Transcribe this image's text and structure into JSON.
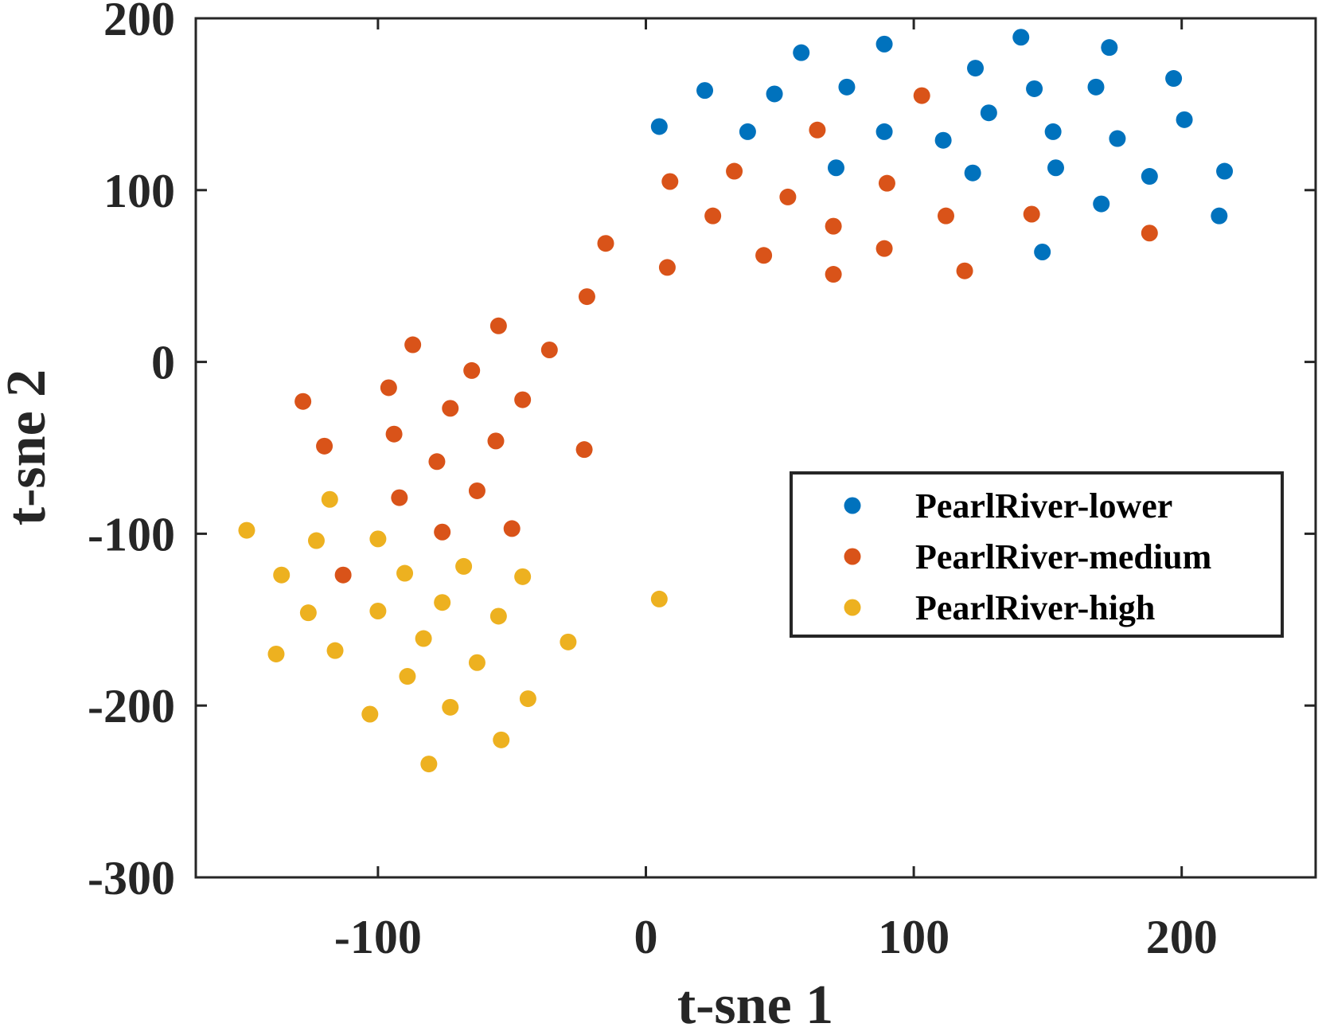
{
  "chart_data": {
    "type": "scatter",
    "title": "",
    "xlabel": "t-sne 1",
    "ylabel": "t-sne 2",
    "xlim": [
      -168,
      250
    ],
    "ylim": [
      -300,
      200
    ],
    "xticks": [
      -100,
      0,
      100,
      200
    ],
    "yticks": [
      -300,
      -200,
      -100,
      0,
      100,
      200
    ],
    "xtick_labels": [
      "-100",
      "0",
      "100",
      "200"
    ],
    "ytick_labels": [
      "-300",
      "-200",
      "-100",
      "0",
      "100",
      "200"
    ],
    "grid": false,
    "legend_position": "center-right",
    "series": [
      {
        "name": "PearlRiver-lower",
        "color": "#0072BD",
        "points": [
          [
            5,
            137
          ],
          [
            22,
            158
          ],
          [
            38,
            134
          ],
          [
            48,
            156
          ],
          [
            58,
            180
          ],
          [
            71,
            113
          ],
          [
            75,
            160
          ],
          [
            89,
            134
          ],
          [
            89,
            185
          ],
          [
            111,
            129
          ],
          [
            122,
            110
          ],
          [
            123,
            171
          ],
          [
            128,
            145
          ],
          [
            140,
            189
          ],
          [
            145,
            159
          ],
          [
            148,
            64
          ],
          [
            152,
            134
          ],
          [
            153,
            113
          ],
          [
            168,
            160
          ],
          [
            170,
            92
          ],
          [
            173,
            183
          ],
          [
            176,
            130
          ],
          [
            188,
            108
          ],
          [
            197,
            165
          ],
          [
            201,
            141
          ],
          [
            214,
            85
          ],
          [
            216,
            111
          ]
        ]
      },
      {
        "name": "PearlRiver-medium",
        "color": "#D95319",
        "points": [
          [
            -128,
            -23
          ],
          [
            -120,
            -49
          ],
          [
            -113,
            -124
          ],
          [
            -96,
            -15
          ],
          [
            -94,
            -42
          ],
          [
            -92,
            -79
          ],
          [
            -87,
            10
          ],
          [
            -78,
            -58
          ],
          [
            -76,
            -99
          ],
          [
            -73,
            -27
          ],
          [
            -65,
            -5
          ],
          [
            -63,
            -75
          ],
          [
            -56,
            -46
          ],
          [
            -55,
            21
          ],
          [
            -50,
            -97
          ],
          [
            -46,
            -22
          ],
          [
            -36,
            7
          ],
          [
            -23,
            -51
          ],
          [
            -22,
            38
          ],
          [
            -15,
            69
          ],
          [
            8,
            55
          ],
          [
            9,
            105
          ],
          [
            25,
            85
          ],
          [
            33,
            111
          ],
          [
            44,
            62
          ],
          [
            53,
            96
          ],
          [
            64,
            135
          ],
          [
            70,
            51
          ],
          [
            70,
            79
          ],
          [
            89,
            66
          ],
          [
            90,
            104
          ],
          [
            103,
            155
          ],
          [
            112,
            85
          ],
          [
            119,
            53
          ],
          [
            144,
            86
          ],
          [
            188,
            75
          ]
        ]
      },
      {
        "name": "PearlRiver-high",
        "color": "#EDB120",
        "points": [
          [
            -149,
            -98
          ],
          [
            -136,
            -124
          ],
          [
            -138,
            -170
          ],
          [
            -126,
            -146
          ],
          [
            -123,
            -104
          ],
          [
            -118,
            -80
          ],
          [
            -116,
            -168
          ],
          [
            -103,
            -205
          ],
          [
            -100,
            -103
          ],
          [
            -100,
            -145
          ],
          [
            -90,
            -123
          ],
          [
            -89,
            -183
          ],
          [
            -83,
            -161
          ],
          [
            -81,
            -234
          ],
          [
            -76,
            -140
          ],
          [
            -73,
            -201
          ],
          [
            -68,
            -119
          ],
          [
            -63,
            -175
          ],
          [
            -55,
            -148
          ],
          [
            -54,
            -220
          ],
          [
            -46,
            -125
          ],
          [
            -44,
            -196
          ],
          [
            -29,
            -163
          ],
          [
            5,
            -138
          ]
        ]
      }
    ]
  }
}
